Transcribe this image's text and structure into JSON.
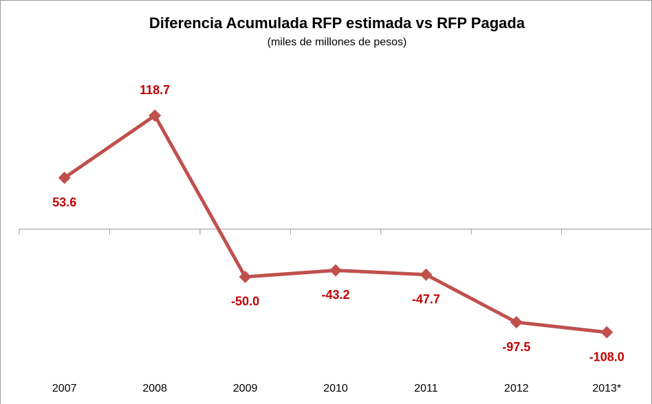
{
  "chart_data": {
    "type": "line",
    "title": "Diferencia Acumulada RFP estimada vs RFP Pagada",
    "subtitle": "(miles de millones de pesos)",
    "categories": [
      "2007",
      "2008",
      "2009",
      "2010",
      "2011",
      "2012",
      "2013*"
    ],
    "values": [
      53.6,
      118.7,
      -50.0,
      -43.2,
      -47.7,
      -97.5,
      -108.0
    ],
    "value_labels": [
      "53.6",
      "118.7",
      "-50.0",
      "-43.2",
      "-47.7",
      "-97.5",
      "-108.0"
    ],
    "color": "#c0504d",
    "label_color": "#c00000",
    "ylim": [
      -183,
      236
    ]
  }
}
